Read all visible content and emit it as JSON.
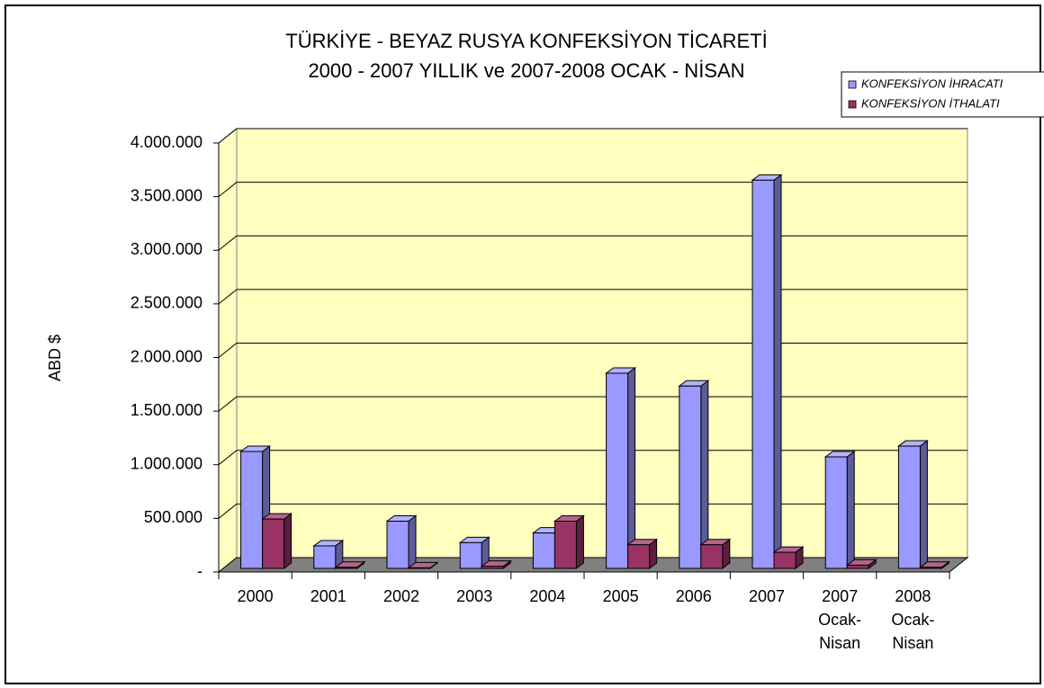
{
  "chart_data": {
    "type": "bar3d",
    "title": "TÜRKİYE - BEYAZ RUSYA KONFEKSİYON TİCARETİ",
    "subtitle": "2000 - 2007 YILLIK ve 2007-2008 OCAK - NİSAN",
    "y_label": "ABD $",
    "categories": [
      "2000",
      "2001",
      "2002",
      "2003",
      "2004",
      "2005",
      "2006",
      "2007",
      "2007 Ocak-Nisan",
      "2008 Ocak-Nisan"
    ],
    "series": [
      {
        "name": "KONFEKSİYON İHRACATI",
        "color": "#9999ff",
        "values": [
          1090000,
          210000,
          440000,
          240000,
          330000,
          1820000,
          1700000,
          3620000,
          1040000,
          1140000
        ]
      },
      {
        "name": "KONFEKSİYON İTHALATI",
        "color": "#993366",
        "values": [
          460000,
          10000,
          5000,
          20000,
          440000,
          220000,
          220000,
          150000,
          30000,
          10000
        ]
      }
    ],
    "ylim": [
      0,
      4000000
    ],
    "yticks": [
      {
        "value": 0,
        "label": "-"
      },
      {
        "value": 500000,
        "label": "500.000"
      },
      {
        "value": 1000000,
        "label": "1.000.000"
      },
      {
        "value": 1500000,
        "label": "1.500.000"
      },
      {
        "value": 2000000,
        "label": "2.000.000"
      },
      {
        "value": 2500000,
        "label": "2.500.000"
      },
      {
        "value": 3000000,
        "label": "3.000.000"
      },
      {
        "value": 3500000,
        "label": "3.500.000"
      },
      {
        "value": 4000000,
        "label": "4.000.000"
      }
    ],
    "grid": true,
    "legend": "top-right"
  }
}
